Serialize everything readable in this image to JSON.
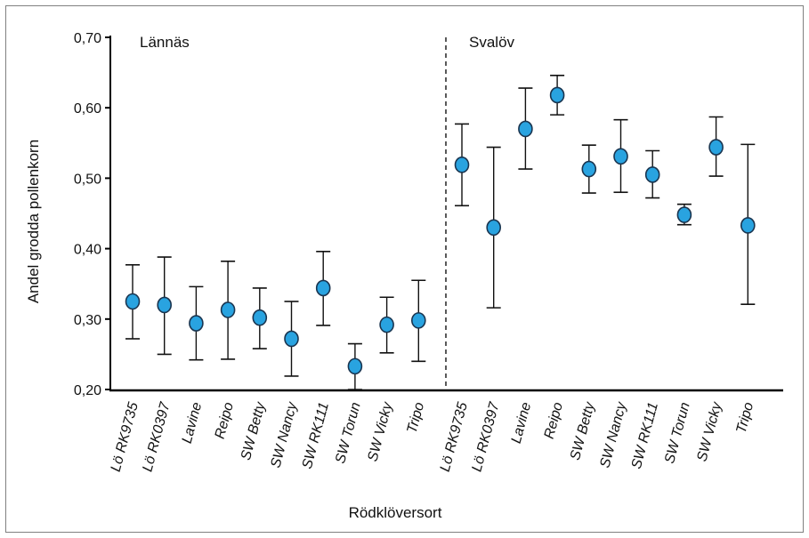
{
  "chart_data": {
    "type": "scatter",
    "title": "",
    "xlabel": "Rödklöversort",
    "ylabel": "Andel grodda pollenkorn",
    "ylim": [
      0.2,
      0.7
    ],
    "yticks": [
      "0,70",
      "0,60",
      "0,50",
      "0,40",
      "0,30",
      "0,20"
    ],
    "ytick_values": [
      0.7,
      0.6,
      0.5,
      0.4,
      0.3,
      0.2
    ],
    "grid": false,
    "legend": "none",
    "marker_color": "#29a3e0",
    "groups": [
      {
        "name": "Lännäs",
        "categories": [
          "Lö RK9735",
          "Lö RK0397",
          "Lavine",
          "Reipo",
          "SW Betty",
          "SW Nancy",
          "SW RK111",
          "SW Torun",
          "SW Vicky",
          "Tripo"
        ],
        "values": [
          0.325,
          0.32,
          0.294,
          0.313,
          0.302,
          0.272,
          0.344,
          0.233,
          0.292,
          0.298
        ],
        "lower": [
          0.272,
          0.25,
          0.242,
          0.243,
          0.258,
          0.219,
          0.291,
          0.2,
          0.252,
          0.24
        ],
        "upper": [
          0.377,
          0.388,
          0.346,
          0.382,
          0.344,
          0.325,
          0.396,
          0.265,
          0.331,
          0.355
        ]
      },
      {
        "name": "Svalöv",
        "categories": [
          "Lö RK9735",
          "Lö RK0397",
          "Lavine",
          "Reipo",
          "SW Betty",
          "SW Nancy",
          "SW RK111",
          "SW Torun",
          "SW Vicky",
          "Tripo"
        ],
        "values": [
          0.519,
          0.43,
          0.57,
          0.618,
          0.513,
          0.531,
          0.505,
          0.448,
          0.544,
          0.433
        ],
        "lower": [
          0.461,
          0.316,
          0.513,
          0.59,
          0.479,
          0.48,
          0.472,
          0.434,
          0.503,
          0.321
        ],
        "upper": [
          0.577,
          0.544,
          0.628,
          0.646,
          0.547,
          0.583,
          0.539,
          0.463,
          0.587,
          0.548
        ]
      }
    ]
  }
}
